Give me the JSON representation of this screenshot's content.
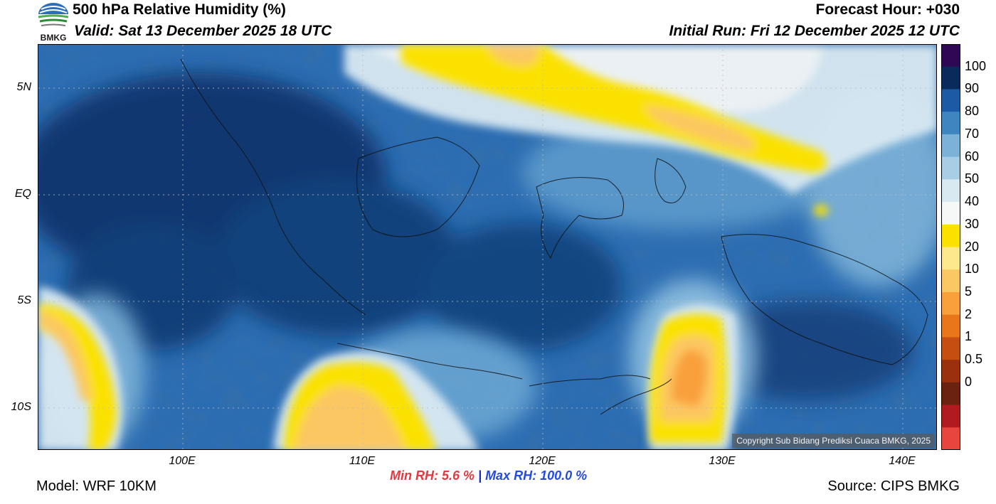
{
  "header": {
    "title": "500 hPa Relative Humidity (%)",
    "valid": "Valid: Sat 13 December 2025 18 UTC",
    "forecast_hour": "Forecast Hour: +030",
    "initial_run": "Initial Run: Fri 12 December 2025 12 UTC",
    "logo_text": "BMKG"
  },
  "axes": {
    "lat_labels": [
      "5N",
      "EQ",
      "5S",
      "10S"
    ],
    "lon_labels": [
      "100E",
      "110E",
      "120E",
      "130E",
      "140E"
    ]
  },
  "colorbar": {
    "labels": [
      "100",
      "90",
      "80",
      "70",
      "60",
      "50",
      "40",
      "30",
      "20",
      "10",
      "5",
      "2",
      "1",
      "0.5",
      "0"
    ],
    "colors": [
      "#2e0854",
      "#0b2a5c",
      "#1c5aa6",
      "#3d86c0",
      "#7db2d8",
      "#a9cde4",
      "#d9e9f2",
      "#f6f8f8",
      "#fbe100",
      "#fde98b",
      "#fbc762",
      "#f9a03c",
      "#e9761b",
      "#c54e11",
      "#9a300e",
      "#6b2211",
      "#b11a1e",
      "#e8463c"
    ]
  },
  "stats": {
    "min_rh": "Min RH:   5.6 %",
    "separator": " | ",
    "max_rh": "Max RH: 100.0 %"
  },
  "footer": {
    "model": "Model: WRF 10KM",
    "source": "Source: CIPS BMKG",
    "copyright": "Copyright Sub Bidang Prediksi Cuaca BMKG, 2025"
  }
}
